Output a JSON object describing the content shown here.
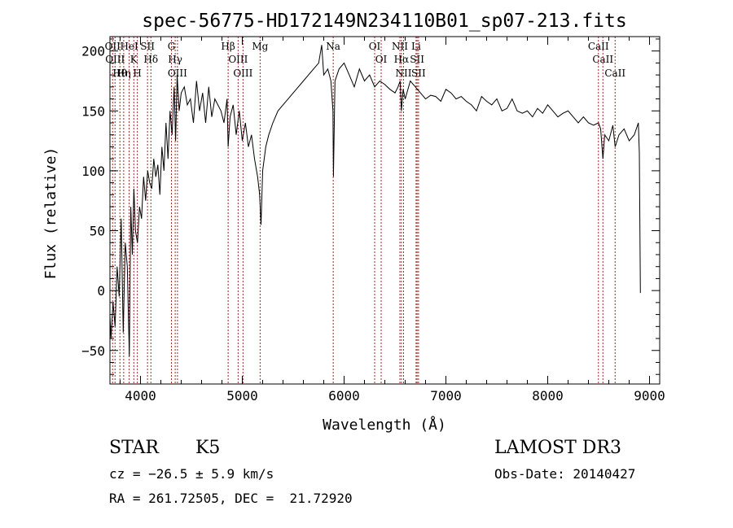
{
  "chart_data": {
    "type": "line",
    "title": "spec-56775-HD172149N234110B01_sp07-213.fits",
    "xlabel": "Wavelength (Å)",
    "ylabel": "Flux (relative)",
    "xlim": [
      3700,
      9100
    ],
    "ylim": [
      -78,
      212
    ],
    "xticks": [
      4000,
      5000,
      6000,
      7000,
      8000,
      9000
    ],
    "xtick_labels": [
      "4000",
      "5000",
      "6000",
      "7000",
      "8000",
      "9000"
    ],
    "yticks": [
      -50,
      0,
      50,
      100,
      150,
      200
    ],
    "ytick_labels": [
      "−50",
      "0",
      "50",
      "100",
      "150",
      "200"
    ],
    "series": [
      {
        "name": "flux",
        "x": [
          3700,
          3710,
          3730,
          3750,
          3770,
          3790,
          3810,
          3830,
          3850,
          3870,
          3890,
          3905,
          3920,
          3935,
          3950,
          3970,
          3990,
          4010,
          4030,
          4050,
          4070,
          4090,
          4110,
          4130,
          4150,
          4170,
          4190,
          4210,
          4230,
          4250,
          4270,
          4290,
          4310,
          4330,
          4345,
          4360,
          4380,
          4400,
          4430,
          4460,
          4490,
          4520,
          4550,
          4580,
          4610,
          4640,
          4670,
          4700,
          4730,
          4760,
          4790,
          4820,
          4850,
          4861,
          4880,
          4910,
          4940,
          4970,
          5000,
          5030,
          5060,
          5090,
          5120,
          5150,
          5170,
          5184,
          5200,
          5230,
          5260,
          5300,
          5350,
          5400,
          5450,
          5500,
          5550,
          5600,
          5650,
          5700,
          5750,
          5780,
          5800,
          5840,
          5870,
          5890,
          5895,
          5910,
          5950,
          6000,
          6050,
          6100,
          6150,
          6200,
          6250,
          6300,
          6350,
          6400,
          6450,
          6500,
          6530,
          6550,
          6563,
          6580,
          6600,
          6650,
          6700,
          6750,
          6800,
          6850,
          6900,
          6950,
          7000,
          7050,
          7100,
          7150,
          7200,
          7250,
          7300,
          7350,
          7400,
          7450,
          7500,
          7550,
          7600,
          7650,
          7700,
          7750,
          7800,
          7850,
          7900,
          7950,
          8000,
          8050,
          8100,
          8150,
          8200,
          8250,
          8300,
          8350,
          8400,
          8450,
          8498,
          8520,
          8542,
          8560,
          8600,
          8640,
          8662,
          8700,
          8750,
          8800,
          8850,
          8890,
          8900,
          8910
        ],
        "values": [
          -20,
          -40,
          -10,
          -30,
          20,
          -5,
          60,
          -35,
          40,
          20,
          -55,
          70,
          30,
          85,
          50,
          40,
          70,
          60,
          95,
          75,
          100,
          90,
          85,
          110,
          95,
          105,
          80,
          120,
          100,
          140,
          110,
          150,
          130,
          170,
          125,
          180,
          150,
          165,
          170,
          155,
          160,
          140,
          175,
          150,
          165,
          140,
          170,
          145,
          160,
          155,
          150,
          140,
          160,
          120,
          145,
          155,
          130,
          150,
          125,
          140,
          120,
          130,
          110,
          95,
          80,
          55,
          100,
          120,
          130,
          140,
          150,
          155,
          160,
          165,
          170,
          175,
          180,
          185,
          190,
          205,
          180,
          185,
          175,
          150,
          95,
          175,
          185,
          190,
          180,
          170,
          185,
          175,
          180,
          170,
          175,
          172,
          168,
          165,
          170,
          175,
          150,
          168,
          160,
          175,
          170,
          165,
          160,
          163,
          162,
          158,
          168,
          165,
          160,
          162,
          158,
          155,
          150,
          162,
          158,
          155,
          160,
          150,
          152,
          160,
          150,
          148,
          150,
          145,
          152,
          148,
          155,
          150,
          145,
          148,
          150,
          145,
          140,
          145,
          140,
          138,
          140,
          135,
          110,
          130,
          125,
          138,
          120,
          130,
          135,
          125,
          130,
          140,
          115,
          -2
        ]
      }
    ],
    "lines": [
      {
        "wl": 3726,
        "label": "OII"
      },
      {
        "wl": 3750,
        "label": "OIII"
      },
      {
        "wl": 3798,
        "label": "Hθ"
      },
      {
        "wl": 3835,
        "label": "Hη"
      },
      {
        "wl": 3889,
        "label": "HeI"
      },
      {
        "wl": 3934,
        "label": "K"
      },
      {
        "wl": 3969,
        "label": "H"
      },
      {
        "wl": 4069,
        "label": "SII"
      },
      {
        "wl": 4102,
        "label": "Hδ"
      },
      {
        "wl": 4304,
        "label": "G"
      },
      {
        "wl": 4341,
        "label": "Hγ"
      },
      {
        "wl": 4363,
        "label": "OIII"
      },
      {
        "wl": 4861,
        "label": "Hβ"
      },
      {
        "wl": 4959,
        "label": "OIII"
      },
      {
        "wl": 5007,
        "label": "OIII"
      },
      {
        "wl": 5175,
        "label": "Mg"
      },
      {
        "wl": 5893,
        "label": "Na"
      },
      {
        "wl": 6300,
        "label": "OI"
      },
      {
        "wl": 6364,
        "label": "OI"
      },
      {
        "wl": 6548,
        "label": "NII"
      },
      {
        "wl": 6563,
        "label": "Hα"
      },
      {
        "wl": 6584,
        "label": "NII"
      },
      {
        "wl": 6707,
        "label": "Li"
      },
      {
        "wl": 6717,
        "label": "SII"
      },
      {
        "wl": 6731,
        "label": "SII"
      },
      {
        "wl": 8498,
        "label": "CaII"
      },
      {
        "wl": 8542,
        "label": "CaII"
      },
      {
        "wl": 8662,
        "label": "CaII"
      }
    ]
  },
  "info": {
    "class_label": "STAR",
    "subclass": "K5",
    "cz": "cz = −26.5 ± 5.9 km/s",
    "radec": "RA = 261.72505, DEC =  21.72920",
    "survey": "LAMOST DR3",
    "obs_date": "Obs-Date: 20140427"
  }
}
